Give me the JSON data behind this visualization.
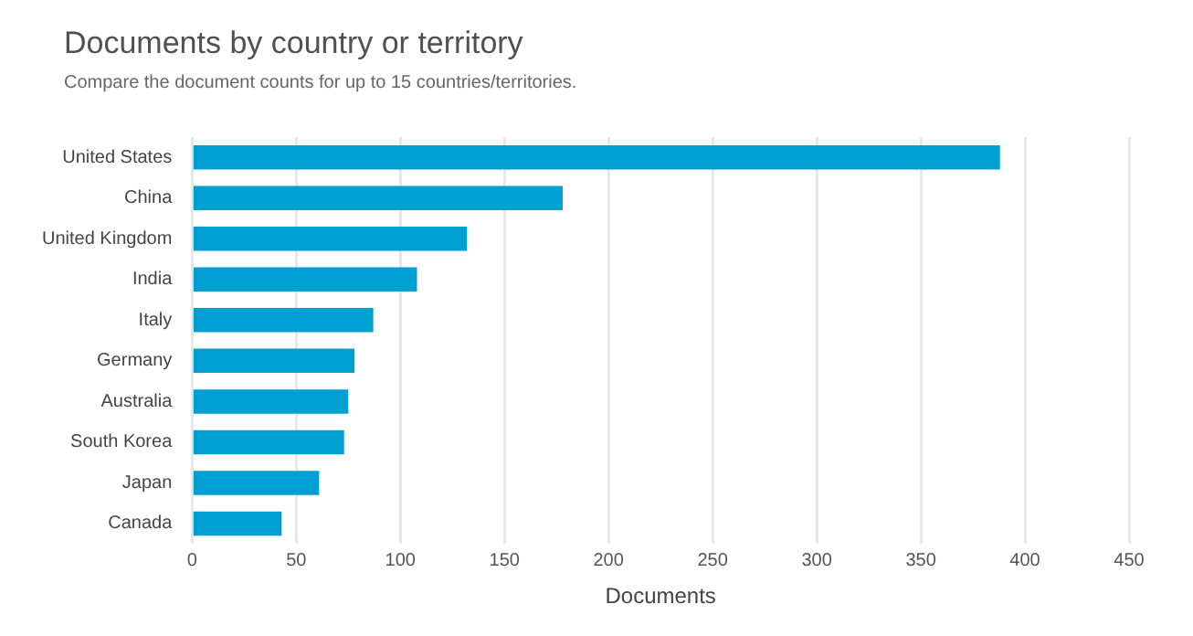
{
  "chart_data": {
    "type": "bar",
    "orientation": "horizontal",
    "title": "Documents by country or territory",
    "subtitle": "Compare the document counts for up to 15 countries/territories.",
    "xlabel": "Documents",
    "categories": [
      "United States",
      "China",
      "United Kingdom",
      "India",
      "Italy",
      "Germany",
      "Australia",
      "South Korea",
      "Japan",
      "Canada"
    ],
    "values": [
      388,
      178,
      132,
      108,
      87,
      78,
      75,
      73,
      61,
      43
    ],
    "color": "#009fd1",
    "xlim": [
      0,
      450
    ],
    "xticks": [
      0,
      50,
      100,
      150,
      200,
      250,
      300,
      350,
      400,
      450
    ],
    "grid": "x",
    "legend": false
  }
}
